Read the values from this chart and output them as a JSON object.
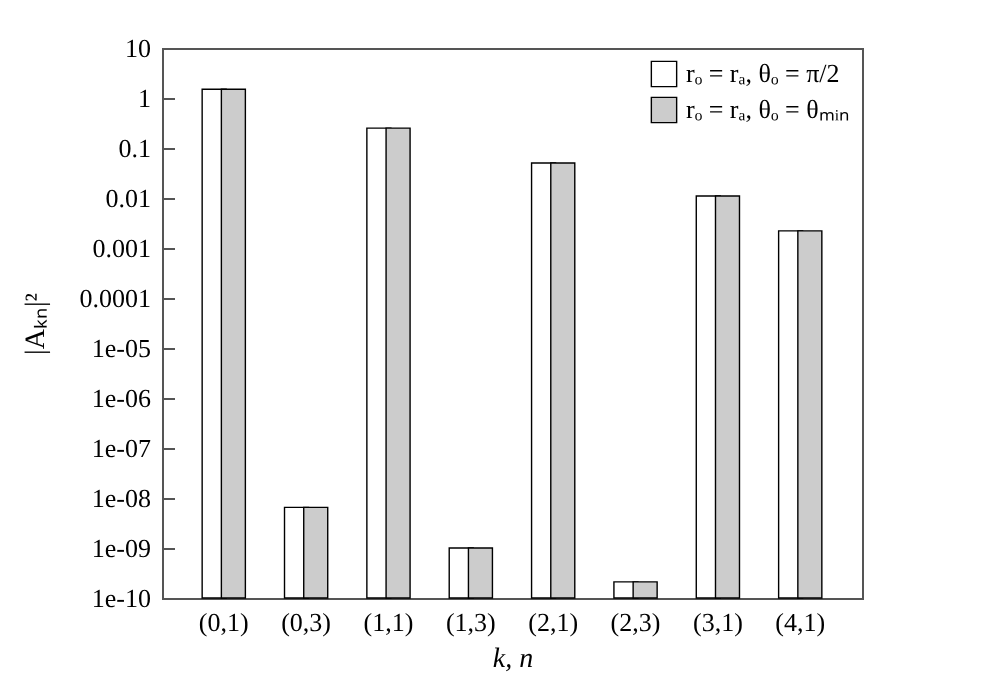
{
  "chart_data": {
    "type": "bar",
    "xlabel": "k, n",
    "ylabel": "|Aₖₙ|²",
    "categories": [
      "(0,1)",
      "(0,3)",
      "(1,1)",
      "(1,3)",
      "(2,1)",
      "(2,3)",
      "(3,1)",
      "(4,1)"
    ],
    "series": [
      {
        "name": "rₒ = rₐ, θₒ = π/2",
        "color": "#ffffff",
        "values": [
          1.5,
          6.5e-09,
          0.25,
          1e-09,
          0.05,
          2.1e-10,
          0.011,
          0.0022
        ]
      },
      {
        "name": "rₒ = rₐ, θₒ = θₘᵢₙ",
        "color": "#cccccc",
        "values": [
          1.5,
          6.5e-09,
          0.25,
          1e-09,
          0.05,
          2.1e-10,
          0.011,
          0.0022
        ]
      }
    ],
    "log": true,
    "ylim": [
      1e-10,
      10
    ],
    "yticks": [
      10,
      1,
      0.1,
      0.01,
      0.001,
      0.0001,
      {
        "value": 1e-05,
        "label": "1e-05"
      },
      {
        "value": 1e-06,
        "label": "1e-06"
      },
      {
        "value": 1e-07,
        "label": "1e-07"
      },
      {
        "value": 1e-08,
        "label": "1e-08"
      },
      {
        "value": 1e-09,
        "label": "1e-09"
      },
      {
        "value": 1e-10,
        "label": "1e-10"
      }
    ],
    "legend": "top right",
    "grid": false
  }
}
